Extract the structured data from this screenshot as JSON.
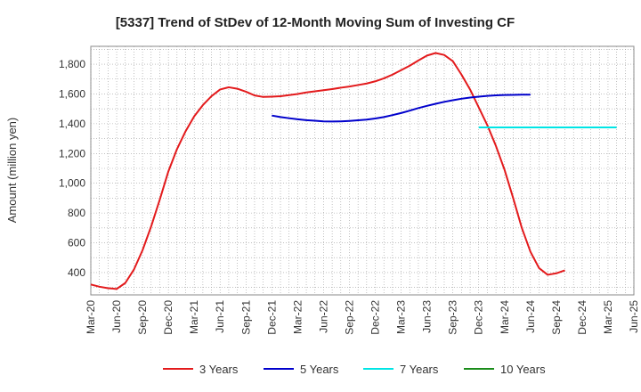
{
  "chart_data": {
    "type": "line",
    "title": "[5337]  Trend of StDev of 12-Month Moving Sum of Investing CF",
    "ylabel": "Amount (million yen)",
    "xlabel": "",
    "ylim": [
      250,
      1920
    ],
    "yticks": [
      "400",
      "600",
      "800",
      "1,000",
      "1,200",
      "1,400",
      "1,600",
      "1,800"
    ],
    "ytick_values": [
      400,
      600,
      800,
      1000,
      1200,
      1400,
      1600,
      1800
    ],
    "x_tick_labels": [
      "Mar-20",
      "Jun-20",
      "Sep-20",
      "Dec-20",
      "Mar-21",
      "Jun-21",
      "Sep-21",
      "Dec-21",
      "Mar-22",
      "Jun-22",
      "Sep-22",
      "Dec-22",
      "Mar-23",
      "Jun-23",
      "Sep-23",
      "Dec-23",
      "Mar-24",
      "Jun-24",
      "Sep-24",
      "Dec-24",
      "Mar-25",
      "Jun-25"
    ],
    "grid": true,
    "legend_position": "bottom",
    "series": [
      {
        "name": "3 Years",
        "color": "#e31a1c",
        "start_index": 0,
        "values": [
          320,
          305,
          295,
          290,
          330,
          420,
          550,
          710,
          890,
          1080,
          1230,
          1350,
          1450,
          1525,
          1585,
          1630,
          1645,
          1635,
          1615,
          1590,
          1580,
          1582,
          1585,
          1592,
          1600,
          1610,
          1618,
          1625,
          1633,
          1642,
          1650,
          1660,
          1670,
          1685,
          1705,
          1730,
          1760,
          1790,
          1825,
          1858,
          1875,
          1862,
          1820,
          1730,
          1630,
          1510,
          1390,
          1250,
          1090,
          900,
          700,
          540,
          430,
          385,
          395,
          415
        ]
      },
      {
        "name": "5 Years",
        "color": "#0000cc",
        "start_index": 21,
        "values": [
          1455,
          1445,
          1437,
          1430,
          1424,
          1420,
          1416,
          1415,
          1416,
          1419,
          1423,
          1428,
          1435,
          1445,
          1458,
          1472,
          1488,
          1505,
          1520,
          1534,
          1547,
          1558,
          1568,
          1576,
          1582,
          1587,
          1591,
          1593,
          1594,
          1595,
          1595
        ]
      },
      {
        "name": "7 Years",
        "color": "#00e5e5",
        "start_index": 45,
        "values": [
          1375,
          1375,
          1375,
          1375,
          1375,
          1375,
          1375,
          1375,
          1375,
          1375,
          1375,
          1375,
          1375,
          1375,
          1375,
          1375,
          1375
        ]
      },
      {
        "name": "10 Years",
        "color": "#1a8c1a",
        "start_index": 0,
        "values": []
      }
    ]
  }
}
